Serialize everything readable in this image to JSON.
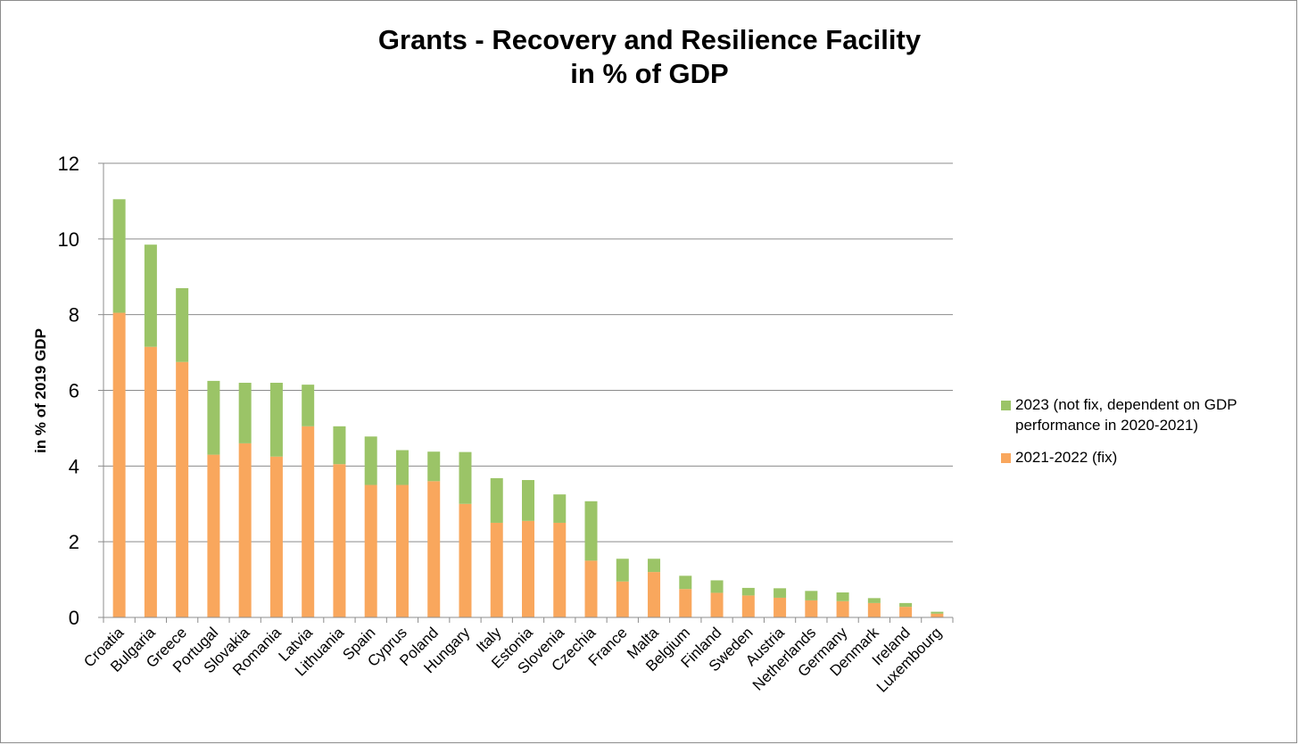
{
  "title_lines": [
    "Grants - Recovery and Resilience Facility",
    "in % of GDP"
  ],
  "colors": {
    "fixed": "#F9A75D",
    "variable": "#9BC467",
    "grid": "#8c8c8c",
    "axis": "#8c8c8c"
  },
  "legend": {
    "items": [
      {
        "label_lines": [
          "2023 (not fix, dependent on GDP",
          "performance in 2020-2021)"
        ],
        "series": "variable"
      },
      {
        "label_lines": [
          "2021-2022 (fix)"
        ],
        "series": "fixed"
      }
    ]
  },
  "chart_data": {
    "type": "bar",
    "stacked": true,
    "title": "Grants - Recovery and Resilience Facility in % of GDP",
    "xlabel": "",
    "ylabel": "in % of 2019 GDP",
    "ylim": [
      0,
      12
    ],
    "yticks": [
      0,
      2,
      4,
      6,
      8,
      10,
      12
    ],
    "grid": true,
    "legend_position": "right",
    "categories": [
      "Croatia",
      "Bulgaria",
      "Greece",
      "Portugal",
      "Slovakia",
      "Romania",
      "Latvia",
      "Lithuania",
      "Spain",
      "Cyprus",
      "Poland",
      "Hungary",
      "Italy",
      "Estonia",
      "Slovenia",
      "Czechia",
      "France",
      "Malta",
      "Belgium",
      "Finland",
      "Sweden",
      "Austria",
      "Netherlands",
      "Germany",
      "Denmark",
      "Ireland",
      "Luxembourg"
    ],
    "series": [
      {
        "name": "2021-2022 (fix)",
        "key": "fixed",
        "values": [
          8.05,
          7.15,
          6.75,
          4.3,
          4.6,
          4.25,
          5.05,
          4.05,
          3.5,
          3.5,
          3.6,
          3.0,
          2.5,
          2.55,
          2.5,
          1.5,
          0.95,
          1.2,
          0.75,
          0.65,
          0.58,
          0.52,
          0.45,
          0.43,
          0.38,
          0.28,
          0.1
        ]
      },
      {
        "name": "2023 (not fix, dependent on GDP performance in 2020-2021)",
        "key": "variable",
        "values": [
          3.0,
          2.7,
          1.95,
          1.95,
          1.6,
          1.95,
          1.1,
          1.0,
          1.28,
          0.92,
          0.78,
          1.37,
          1.18,
          1.08,
          0.75,
          1.57,
          0.6,
          0.35,
          0.35,
          0.33,
          0.2,
          0.25,
          0.25,
          0.23,
          0.13,
          0.1,
          0.05
        ]
      }
    ]
  }
}
